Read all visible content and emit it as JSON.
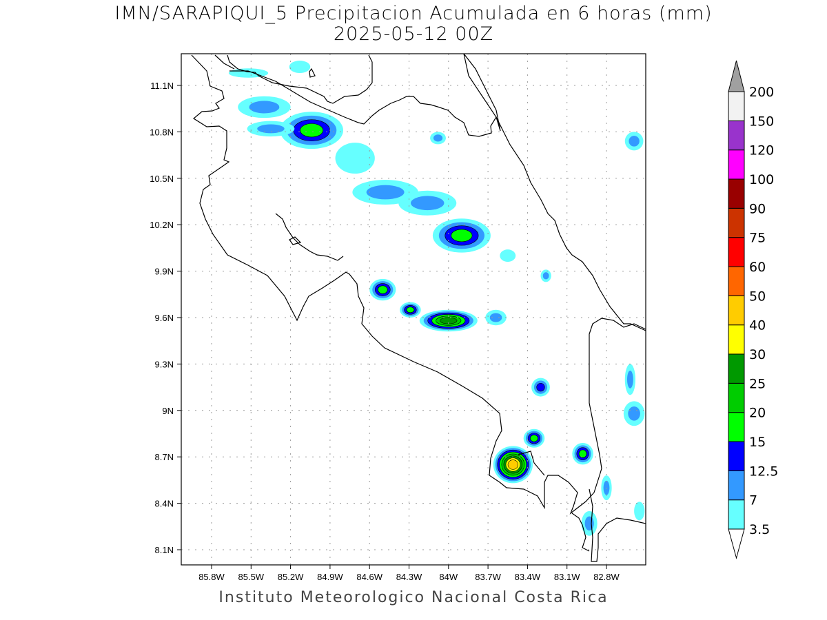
{
  "header": {
    "title": "IMN/SARAPIQUI_5 Precipitacion Acumulada en 6 horas (mm)",
    "subtitle": "2025-05-12 00Z"
  },
  "footer": "Instituto Meteorologico Nacional Costa Rica",
  "chart_data": {
    "type": "heatmap",
    "title": "IMN/SARAPIQUI_5 Precipitacion Acumulada en 6 horas (mm)",
    "subtitle": "2025-05-12 00Z",
    "x_ticks": [
      "85.8W",
      "85.5W",
      "85.2W",
      "84.9W",
      "84.6W",
      "84.3W",
      "84W",
      "83.7W",
      "83.4W",
      "83.1W",
      "82.8W"
    ],
    "x_tick_values": [
      -85.8,
      -85.5,
      -85.2,
      -84.9,
      -84.6,
      -84.3,
      -84.0,
      -83.7,
      -83.4,
      -83.1,
      -82.8
    ],
    "y_ticks": [
      "11.1N",
      "10.8N",
      "10.5N",
      "10.2N",
      "9.9N",
      "9.6N",
      "9.3N",
      "9N",
      "8.7N",
      "8.4N",
      "8.1N"
    ],
    "y_tick_values": [
      11.1,
      10.8,
      10.5,
      10.2,
      9.9,
      9.6,
      9.3,
      9.0,
      8.7,
      8.4,
      8.1
    ],
    "xlim": [
      -86.03,
      -82.5
    ],
    "ylim": [
      8.0,
      11.3
    ],
    "grid": true,
    "colorbar": {
      "labels": [
        "3.5",
        "7",
        "12.5",
        "15",
        "20",
        "25",
        "30",
        "40",
        "50",
        "60",
        "75",
        "90",
        "100",
        "120",
        "150",
        "200"
      ],
      "colors": [
        "#66ffff",
        "#3399ff",
        "#0000ff",
        "#00ff00",
        "#00cc00",
        "#009900",
        "#ffff00",
        "#ffcc00",
        "#ff6600",
        "#ff0000",
        "#cc3300",
        "#990000",
        "#ff00ff",
        "#9933cc",
        "#f2f2f2"
      ],
      "over_color": "#a0a0a0",
      "under_color": "#ffffff",
      "placement": "right"
    },
    "cells": [
      {
        "lon": -85.04,
        "lat": 10.81,
        "rx": 0.24,
        "ry": 0.12,
        "level": 3
      },
      {
        "lon": -85.4,
        "lat": 10.96,
        "rx": 0.2,
        "ry": 0.07,
        "level": 1
      },
      {
        "lon": -85.35,
        "lat": 10.82,
        "rx": 0.18,
        "ry": 0.05,
        "level": 1
      },
      {
        "lon": -85.52,
        "lat": 11.18,
        "rx": 0.15,
        "ry": 0.03,
        "level": 0
      },
      {
        "lon": -85.13,
        "lat": 11.22,
        "rx": 0.08,
        "ry": 0.04,
        "level": 0
      },
      {
        "lon": -84.71,
        "lat": 10.63,
        "rx": 0.15,
        "ry": 0.1,
        "level": 0
      },
      {
        "lon": -84.48,
        "lat": 10.41,
        "rx": 0.25,
        "ry": 0.08,
        "level": 1
      },
      {
        "lon": -84.16,
        "lat": 10.34,
        "rx": 0.22,
        "ry": 0.08,
        "level": 1
      },
      {
        "lon": -83.9,
        "lat": 10.13,
        "rx": 0.22,
        "ry": 0.11,
        "level": 3
      },
      {
        "lon": -83.55,
        "lat": 10.0,
        "rx": 0.06,
        "ry": 0.04,
        "level": 0
      },
      {
        "lon": -84.5,
        "lat": 9.78,
        "rx": 0.1,
        "ry": 0.07,
        "level": 3
      },
      {
        "lon": -84.29,
        "lat": 9.65,
        "rx": 0.08,
        "ry": 0.05,
        "level": 3
      },
      {
        "lon": -84.0,
        "lat": 9.58,
        "rx": 0.22,
        "ry": 0.07,
        "level": 5
      },
      {
        "lon": -83.64,
        "lat": 9.6,
        "rx": 0.08,
        "ry": 0.05,
        "level": 1
      },
      {
        "lon": -83.3,
        "lat": 9.15,
        "rx": 0.07,
        "ry": 0.06,
        "level": 2
      },
      {
        "lon": -83.51,
        "lat": 8.65,
        "rx": 0.15,
        "ry": 0.12,
        "level": 7
      },
      {
        "lon": -83.35,
        "lat": 8.82,
        "rx": 0.08,
        "ry": 0.06,
        "level": 3
      },
      {
        "lon": -82.98,
        "lat": 8.72,
        "rx": 0.08,
        "ry": 0.07,
        "level": 3
      },
      {
        "lon": -82.59,
        "lat": 10.74,
        "rx": 0.07,
        "ry": 0.06,
        "level": 1
      },
      {
        "lon": -83.26,
        "lat": 9.87,
        "rx": 0.04,
        "ry": 0.04,
        "level": 1
      },
      {
        "lon": -82.59,
        "lat": 8.98,
        "rx": 0.08,
        "ry": 0.08,
        "level": 1
      },
      {
        "lon": -82.93,
        "lat": 8.27,
        "rx": 0.06,
        "ry": 0.08,
        "level": 1
      },
      {
        "lon": -84.08,
        "lat": 10.76,
        "rx": 0.06,
        "ry": 0.04,
        "level": 1
      },
      {
        "lon": -82.62,
        "lat": 9.2,
        "rx": 0.04,
        "ry": 0.1,
        "level": 1
      },
      {
        "lon": -82.55,
        "lat": 8.35,
        "rx": 0.04,
        "ry": 0.06,
        "level": 0
      },
      {
        "lon": -82.8,
        "lat": 8.5,
        "rx": 0.04,
        "ry": 0.08,
        "level": 1
      }
    ]
  }
}
